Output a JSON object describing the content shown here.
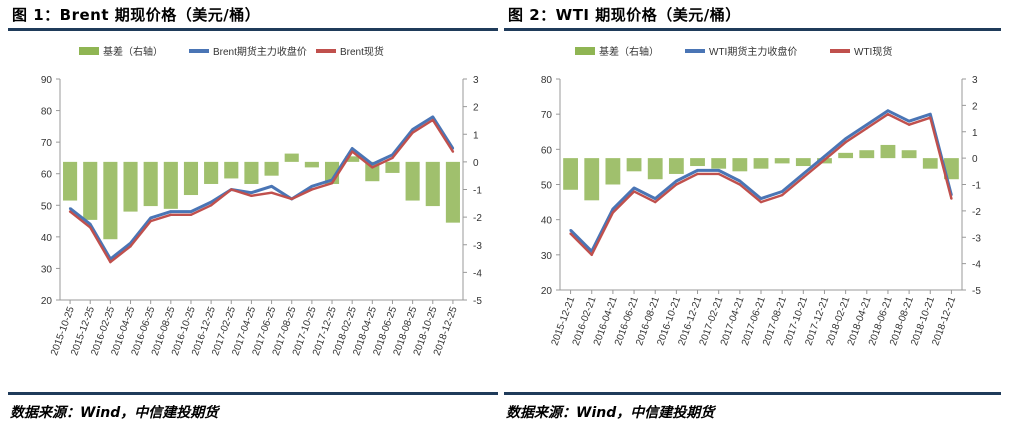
{
  "charts_page": {
    "left_title": "图 1：Brent 期现价格（美元/桶）",
    "right_title": "图 2：WTI 期现价格（美元/桶）",
    "left_source": "数据来源：Wind，中信建投期货",
    "right_source": "数据来源：Wind，中信建投期货"
  },
  "chart_data": [
    {
      "type": "line",
      "title": "图 1：Brent 期现价格（美元/桶）",
      "legend_position": "top",
      "x": [
        "2015-10-25",
        "2015-12-25",
        "2016-02-25",
        "2016-04-25",
        "2016-06-25",
        "2016-08-25",
        "2016-10-25",
        "2016-12-25",
        "2017-02-25",
        "2017-04-25",
        "2017-06-25",
        "2017-08-25",
        "2017-10-25",
        "2017-12-25",
        "2018-02-25",
        "2018-04-25",
        "2018-06-25",
        "2018-08-25",
        "2018-10-25",
        "2018-12-25"
      ],
      "ylim": [
        20,
        90
      ],
      "yticks": [
        20,
        30,
        40,
        50,
        60,
        70,
        80,
        90
      ],
      "y2lim": [
        -5,
        3
      ],
      "y2ticks": [
        -5,
        -4,
        -3,
        -2,
        -1,
        0,
        1,
        2,
        3
      ],
      "series": [
        {
          "name": "基差（右轴）",
          "axis": "right",
          "kind": "area",
          "color": "#8fb553",
          "values": [
            -1.4,
            -2.1,
            -2.8,
            -1.8,
            -1.6,
            -1.7,
            -1.2,
            -0.8,
            -0.6,
            -0.8,
            -0.5,
            0.3,
            -0.2,
            -0.8,
            0.2,
            -0.7,
            -0.4,
            -1.4,
            -1.6,
            -2.2
          ]
        },
        {
          "name": "Brent期货主力收盘价",
          "axis": "left",
          "kind": "line",
          "color": "#4a75b5",
          "values": [
            49,
            44,
            33,
            38,
            46,
            48,
            48,
            51,
            55,
            54,
            56,
            52,
            56,
            58,
            68,
            63,
            66,
            74,
            78,
            68
          ]
        },
        {
          "name": "Brent现货",
          "axis": "left",
          "kind": "line",
          "color": "#c0504d",
          "values": [
            48,
            43,
            32,
            37,
            45,
            47,
            47,
            50,
            55,
            53,
            54,
            52,
            55,
            57,
            67,
            62,
            65,
            73,
            77,
            67
          ]
        }
      ]
    },
    {
      "type": "line",
      "title": "图 2：WTI 期现价格（美元/桶）",
      "legend_position": "top",
      "x": [
        "2015-12-21",
        "2016-02-21",
        "2016-04-21",
        "2016-06-21",
        "2016-08-21",
        "2016-10-21",
        "2016-12-21",
        "2017-02-21",
        "2017-04-21",
        "2017-06-21",
        "2017-08-21",
        "2017-10-21",
        "2017-12-21",
        "2018-02-21",
        "2018-04-21",
        "2018-06-21",
        "2018-08-21",
        "2018-10-21",
        "2018-12-21"
      ],
      "ylim": [
        20,
        80
      ],
      "yticks": [
        20,
        30,
        40,
        50,
        60,
        70,
        80
      ],
      "y2lim": [
        -5,
        3
      ],
      "y2ticks": [
        -5,
        -4,
        -3,
        -2,
        -1,
        0,
        1,
        2,
        3
      ],
      "series": [
        {
          "name": "基差（右轴）",
          "axis": "right",
          "kind": "area",
          "color": "#8fb553",
          "values": [
            -1.2,
            -1.6,
            -1.0,
            -0.5,
            -0.8,
            -0.6,
            -0.3,
            -0.4,
            -0.5,
            -0.4,
            -0.2,
            -0.3,
            -0.2,
            0.2,
            0.3,
            0.5,
            0.3,
            -0.4,
            -0.8
          ]
        },
        {
          "name": "WTI期货主力收盘价",
          "axis": "left",
          "kind": "line",
          "color": "#4a75b5",
          "values": [
            37,
            31,
            43,
            49,
            46,
            51,
            54,
            54,
            51,
            46,
            48,
            53,
            58,
            63,
            67,
            71,
            68,
            70,
            47
          ]
        },
        {
          "name": "WTI现货",
          "axis": "left",
          "kind": "line",
          "color": "#c0504d",
          "values": [
            36,
            30,
            42,
            48,
            45,
            50,
            53,
            53,
            50,
            45,
            47,
            52,
            57,
            62,
            66,
            70,
            67,
            69,
            46
          ]
        }
      ]
    }
  ]
}
